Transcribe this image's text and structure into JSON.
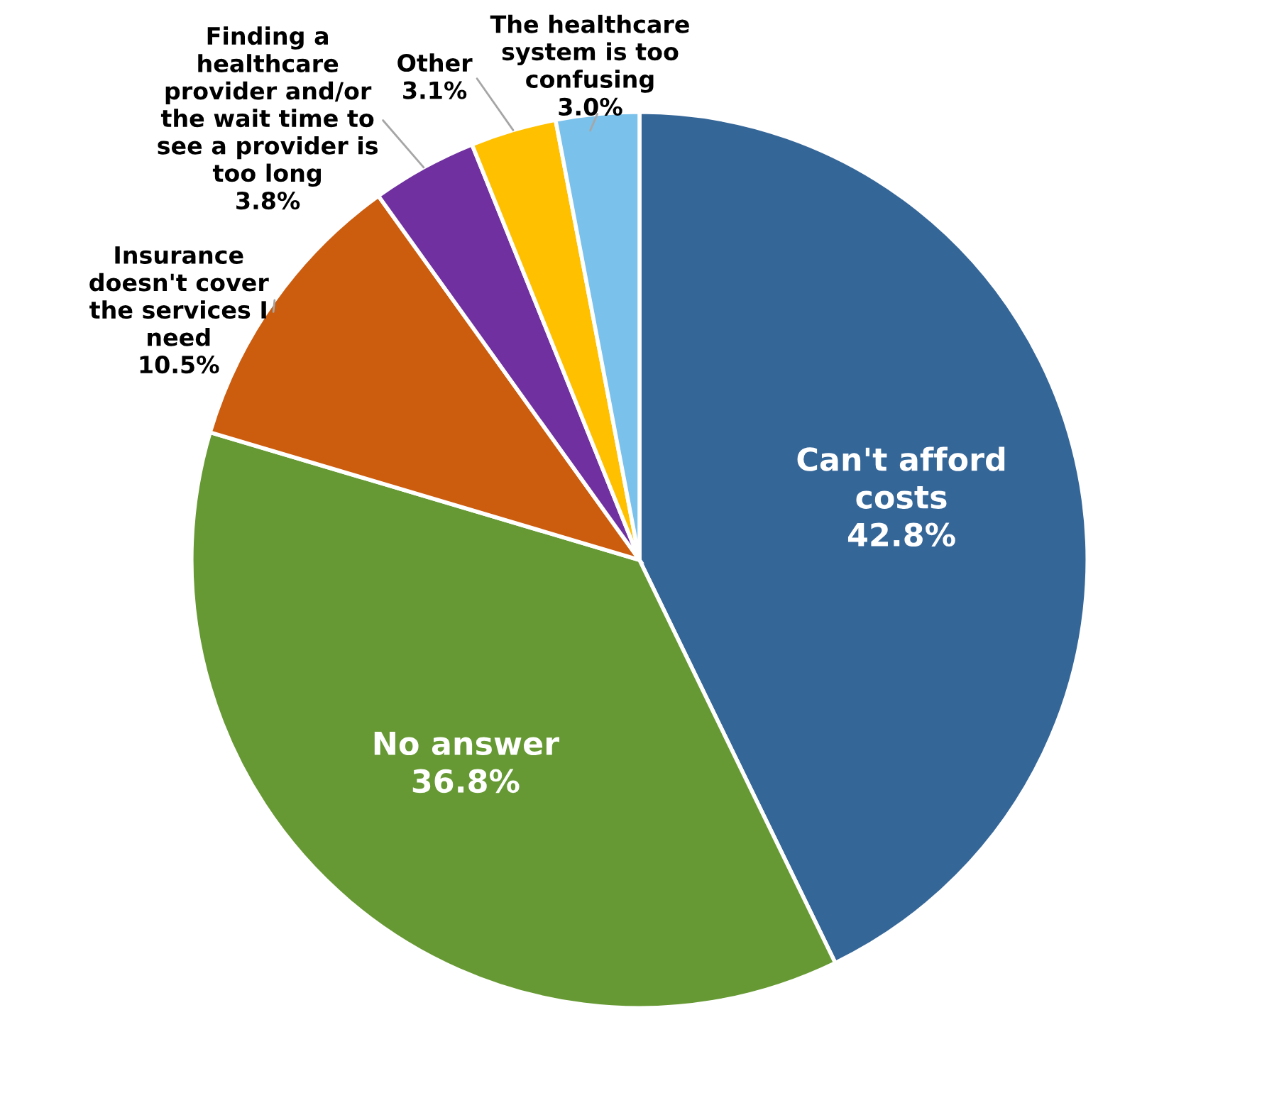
{
  "chart_data": {
    "type": "pie",
    "categories": [
      "Can't afford\ncosts",
      "No answer",
      "Insurance\ndoesn't cover\nthe services I\nneed",
      "Finding a\nhealthcare\nprovider and/or\nthe wait time to\nsee a provider is\ntoo long",
      "Other",
      "The healthcare\nsystem is too\nconfusing"
    ],
    "values": [
      42.8,
      36.8,
      10.5,
      3.8,
      3.1,
      3.0
    ],
    "colors": [
      "#356698",
      "#669933",
      "#cc5c0e",
      "#7030a0",
      "#ffc000",
      "#7ac1eb"
    ],
    "value_labels": [
      "42.8%",
      "36.8%",
      "10.5%",
      "3.8%",
      "3.1%",
      "3.0%"
    ],
    "legend": false
  }
}
